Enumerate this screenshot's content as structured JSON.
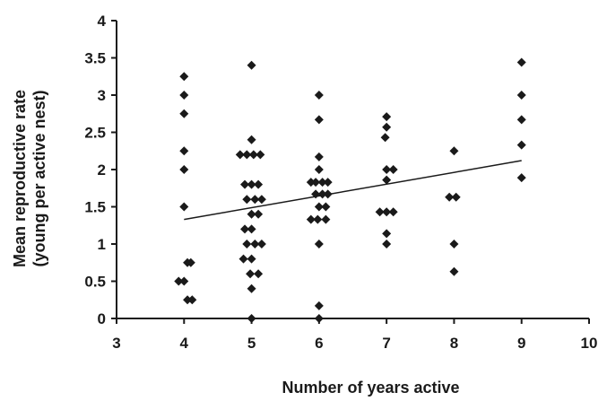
{
  "chart_data": {
    "type": "scatter",
    "title": "",
    "xlabel": "Number of years active",
    "ylabel_lines": [
      "Mean reproductive rate",
      "(young per active nest)"
    ],
    "xlim": [
      3,
      10
    ],
    "ylim": [
      0,
      4
    ],
    "x_ticks": [
      3,
      4,
      5,
      6,
      7,
      8,
      9,
      10
    ],
    "y_ticks": [
      0,
      0.5,
      1,
      1.5,
      2,
      2.5,
      3,
      3.5,
      4
    ],
    "y_tick_labels": [
      "0",
      "0.5",
      "1",
      "1.5",
      "2",
      "2.5",
      "3",
      "3.5",
      "4"
    ],
    "grid": false,
    "marker": "diamond",
    "marker_color": "#1a1a1a",
    "points": [
      [
        4,
        3.25
      ],
      [
        4,
        3.0
      ],
      [
        4,
        2.75
      ],
      [
        4,
        2.25
      ],
      [
        4,
        2.0
      ],
      [
        4,
        1.5
      ],
      [
        4.05,
        0.75
      ],
      [
        4.1,
        0.75
      ],
      [
        3.92,
        0.5
      ],
      [
        4.0,
        0.5
      ],
      [
        4.05,
        0.25
      ],
      [
        4.12,
        0.25
      ],
      [
        5,
        3.4
      ],
      [
        5,
        2.4
      ],
      [
        4.83,
        2.2
      ],
      [
        4.93,
        2.2
      ],
      [
        5.03,
        2.2
      ],
      [
        5.13,
        2.2
      ],
      [
        4.9,
        1.8
      ],
      [
        5.0,
        1.8
      ],
      [
        5.1,
        1.8
      ],
      [
        4.93,
        1.6
      ],
      [
        5.05,
        1.6
      ],
      [
        5.15,
        1.6
      ],
      [
        5.0,
        1.4
      ],
      [
        5.1,
        1.4
      ],
      [
        4.9,
        1.2
      ],
      [
        5.0,
        1.2
      ],
      [
        4.93,
        1.0
      ],
      [
        5.05,
        1.0
      ],
      [
        5.15,
        1.0
      ],
      [
        4.88,
        0.8
      ],
      [
        5.0,
        0.8
      ],
      [
        4.98,
        0.6
      ],
      [
        5.1,
        0.6
      ],
      [
        5.0,
        0.4
      ],
      [
        5.0,
        0.0
      ],
      [
        6,
        3.0
      ],
      [
        6,
        2.67
      ],
      [
        6,
        2.17
      ],
      [
        6,
        2.0
      ],
      [
        5.88,
        1.83
      ],
      [
        5.95,
        1.83
      ],
      [
        6.05,
        1.83
      ],
      [
        6.13,
        1.83
      ],
      [
        5.95,
        1.67
      ],
      [
        6.05,
        1.67
      ],
      [
        6.13,
        1.67
      ],
      [
        6.0,
        1.5
      ],
      [
        6.1,
        1.5
      ],
      [
        5.88,
        1.33
      ],
      [
        5.98,
        1.33
      ],
      [
        6.1,
        1.33
      ],
      [
        6.0,
        1.0
      ],
      [
        6.0,
        0.17
      ],
      [
        6.0,
        0.0
      ],
      [
        7,
        2.71
      ],
      [
        7,
        2.57
      ],
      [
        6.98,
        2.43
      ],
      [
        7,
        2.0
      ],
      [
        7.1,
        2.0
      ],
      [
        7.0,
        1.86
      ],
      [
        6.9,
        1.43
      ],
      [
        7.0,
        1.43
      ],
      [
        7.1,
        1.43
      ],
      [
        7.0,
        1.14
      ],
      [
        7.0,
        1.0
      ],
      [
        8,
        2.25
      ],
      [
        7.93,
        1.63
      ],
      [
        8.03,
        1.63
      ],
      [
        8.0,
        1.0
      ],
      [
        8.0,
        0.63
      ],
      [
        9,
        3.44
      ],
      [
        9,
        3.0
      ],
      [
        9,
        2.67
      ],
      [
        9,
        2.33
      ],
      [
        9,
        1.89
      ]
    ],
    "trendline": {
      "from": [
        4,
        1.33
      ],
      "to": [
        9,
        2.12
      ]
    }
  }
}
